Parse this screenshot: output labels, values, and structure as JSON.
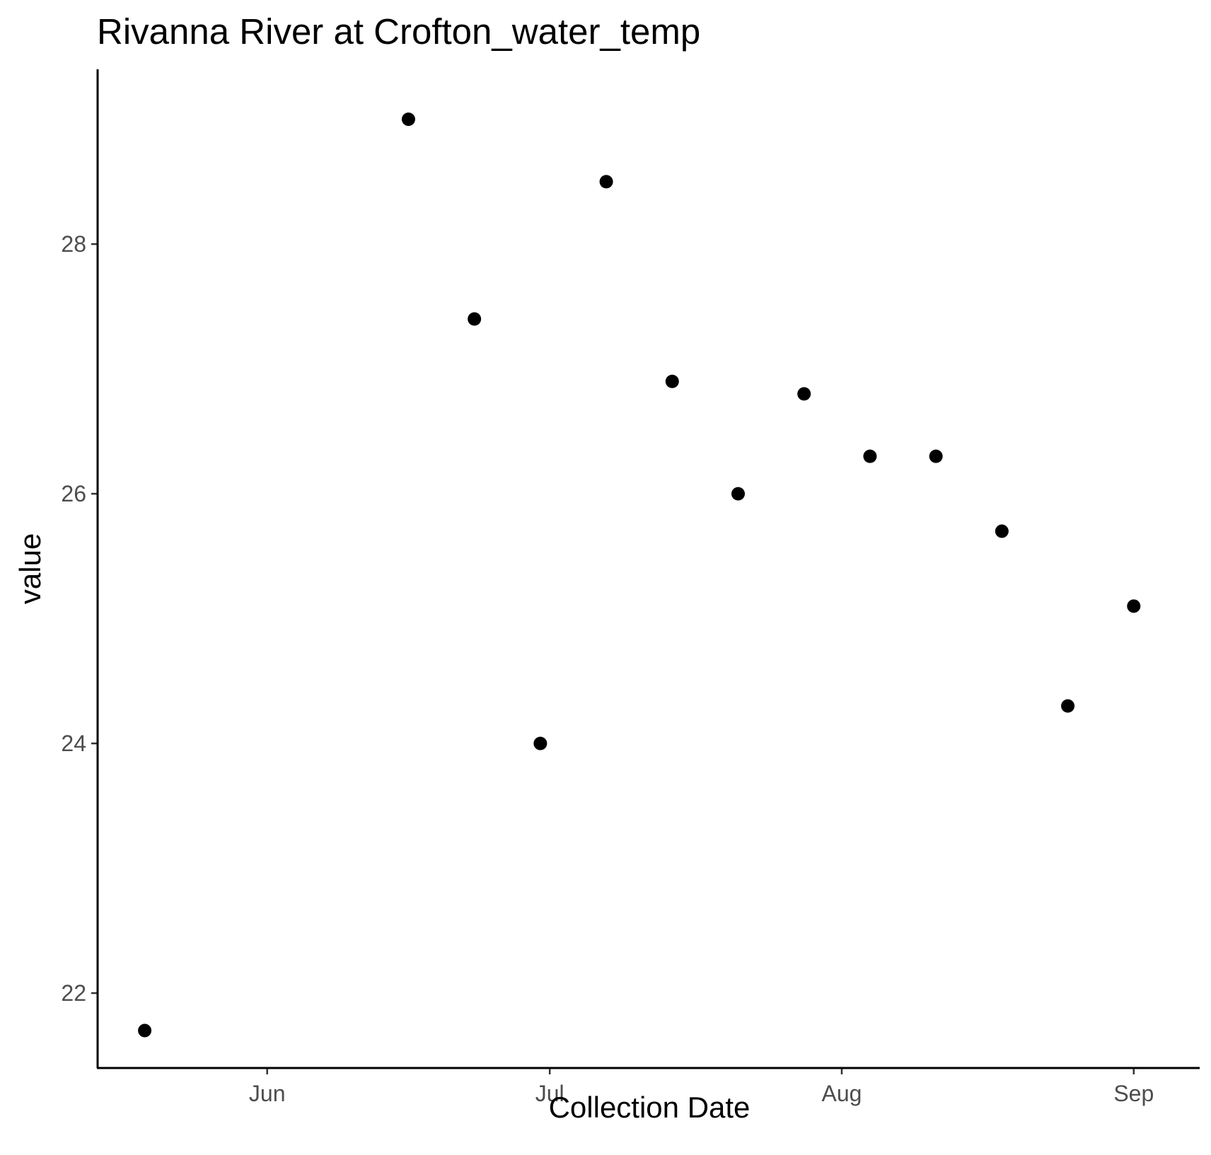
{
  "chart_data": {
    "type": "scatter",
    "title": "Rivanna River at Crofton_water_temp",
    "xlabel": "Collection Date",
    "ylabel": "value",
    "x_axis_type": "date",
    "xlim": [
      "2021-05-14",
      "2021-09-08"
    ],
    "ylim": [
      21.4,
      29.4
    ],
    "x_ticks": [
      {
        "value": "2021-06-01",
        "label": "Jun"
      },
      {
        "value": "2021-07-01",
        "label": "Jul"
      },
      {
        "value": "2021-08-01",
        "label": "Aug"
      },
      {
        "value": "2021-09-01",
        "label": "Sep"
      }
    ],
    "y_ticks": [
      {
        "value": 22,
        "label": "22"
      },
      {
        "value": 24,
        "label": "24"
      },
      {
        "value": 26,
        "label": "26"
      },
      {
        "value": 28,
        "label": "28"
      }
    ],
    "grid": false,
    "legend": "none",
    "point_color": "#000000",
    "points": [
      {
        "x": "2021-05-19",
        "y": 21.7
      },
      {
        "x": "2021-06-16",
        "y": 29.0
      },
      {
        "x": "2021-06-23",
        "y": 27.4
      },
      {
        "x": "2021-06-30",
        "y": 24.0
      },
      {
        "x": "2021-07-07",
        "y": 28.5
      },
      {
        "x": "2021-07-14",
        "y": 26.9
      },
      {
        "x": "2021-07-21",
        "y": 26.0
      },
      {
        "x": "2021-07-28",
        "y": 26.8
      },
      {
        "x": "2021-08-04",
        "y": 26.3
      },
      {
        "x": "2021-08-11",
        "y": 26.3
      },
      {
        "x": "2021-08-18",
        "y": 25.7
      },
      {
        "x": "2021-08-25",
        "y": 24.3
      },
      {
        "x": "2021-09-01",
        "y": 25.1
      }
    ]
  }
}
